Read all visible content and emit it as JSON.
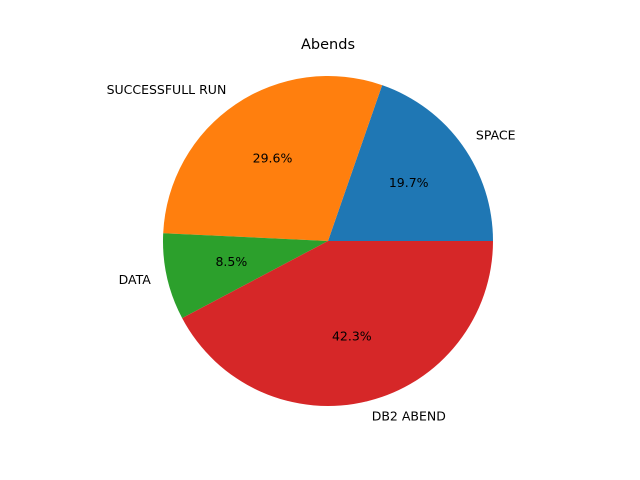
{
  "chart_data": {
    "type": "pie",
    "title": "Abends",
    "slices": [
      {
        "label": "SPACE",
        "value": 19.7,
        "pct_label": "19.7%",
        "color": "#1f77b4"
      },
      {
        "label": "SUCCESSFULL RUN",
        "value": 29.6,
        "pct_label": "29.6%",
        "color": "#ff7f0e"
      },
      {
        "label": "DATA",
        "value": 8.5,
        "pct_label": "8.5%",
        "color": "#2ca02c"
      },
      {
        "label": "DB2 ABEND",
        "value": 42.3,
        "pct_label": "42.3%",
        "color": "#d62728"
      }
    ],
    "start_angle_deg": 0,
    "direction": "counterclockwise",
    "legend": "none"
  }
}
